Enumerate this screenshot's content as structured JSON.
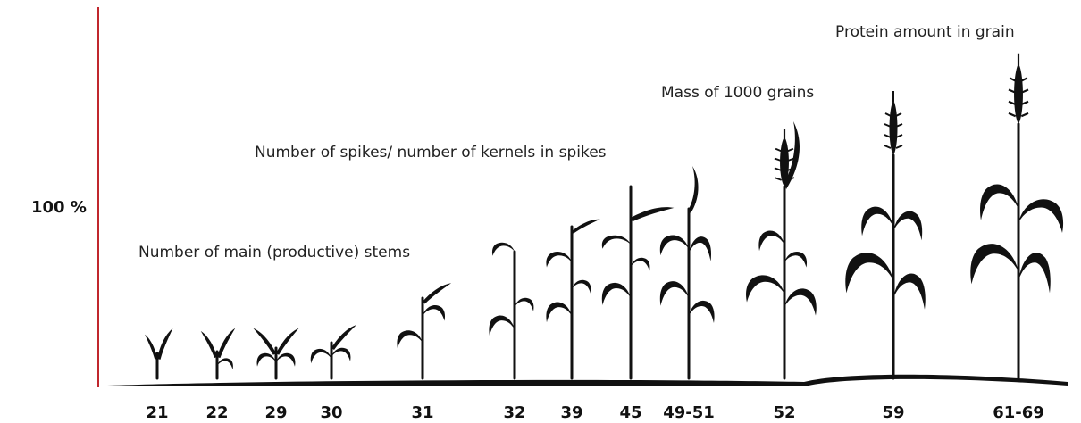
{
  "y_label": "100 %",
  "annotations": [
    "Number of main (productive) stems",
    "Number of spikes/ number of kernels in spikes",
    "Mass of 1000 grains",
    "Protein amount in grain"
  ],
  "stages": [
    "21",
    "22",
    "29",
    "30",
    "31",
    "32",
    "39",
    "45",
    "49-51",
    "52",
    "59",
    "61-69"
  ]
}
